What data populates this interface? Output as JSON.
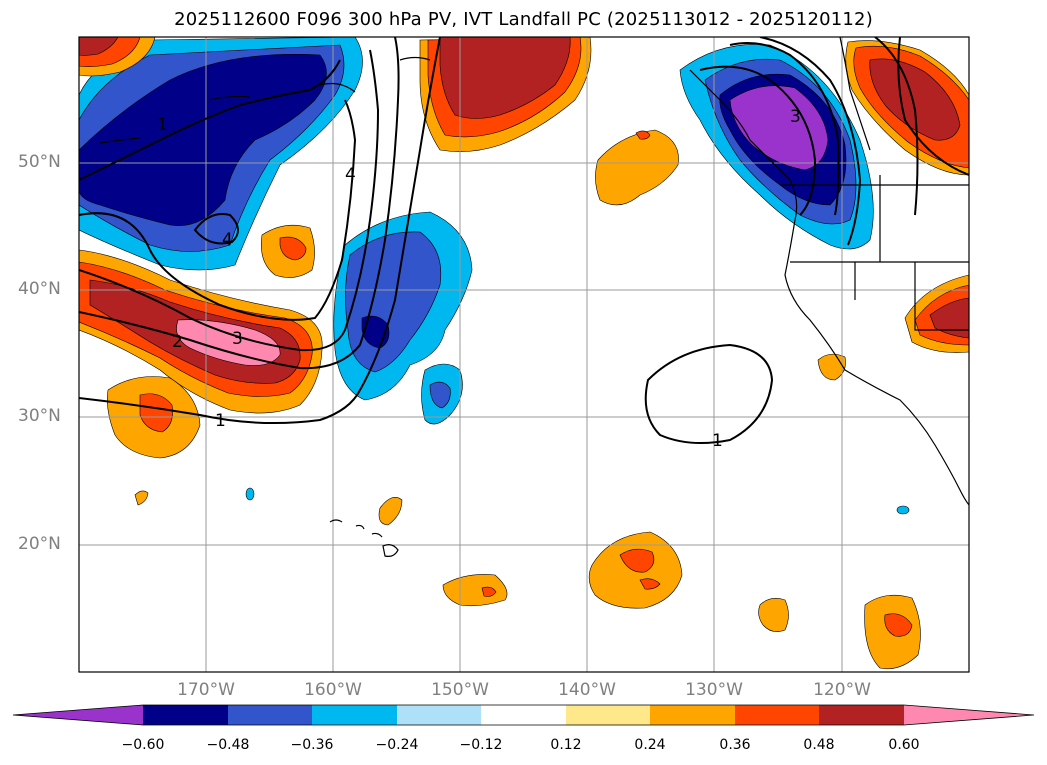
{
  "title": "2025112600 F096 300 hPa PV, IVT Landfall PC (2025113012 - 2025120112)",
  "lat_labels": [
    "50°N",
    "40°N",
    "30°N",
    "20°N"
  ],
  "lon_labels": [
    "170°W",
    "160°W",
    "150°W",
    "140°W",
    "130°W",
    "120°W"
  ],
  "colorbar": {
    "ticks": [
      "−0.60",
      "−0.48",
      "−0.36",
      "−0.24",
      "−0.12",
      "0.12",
      "0.24",
      "0.36",
      "0.48",
      "0.60"
    ],
    "colors": [
      "#9933cc",
      "#000088",
      "#3355cc",
      "#00b8f0",
      "#aee0f8",
      "#ffffff",
      "#ffe88a",
      "#ffa500",
      "#ff4500",
      "#b22222",
      "#ff88b0"
    ]
  },
  "contour_labels": [
    "1",
    "2",
    "3",
    "4",
    "4",
    "1",
    "1",
    "3"
  ],
  "map_extent": {
    "lon": [
      -180,
      -110
    ],
    "lat": [
      10,
      60
    ]
  }
}
